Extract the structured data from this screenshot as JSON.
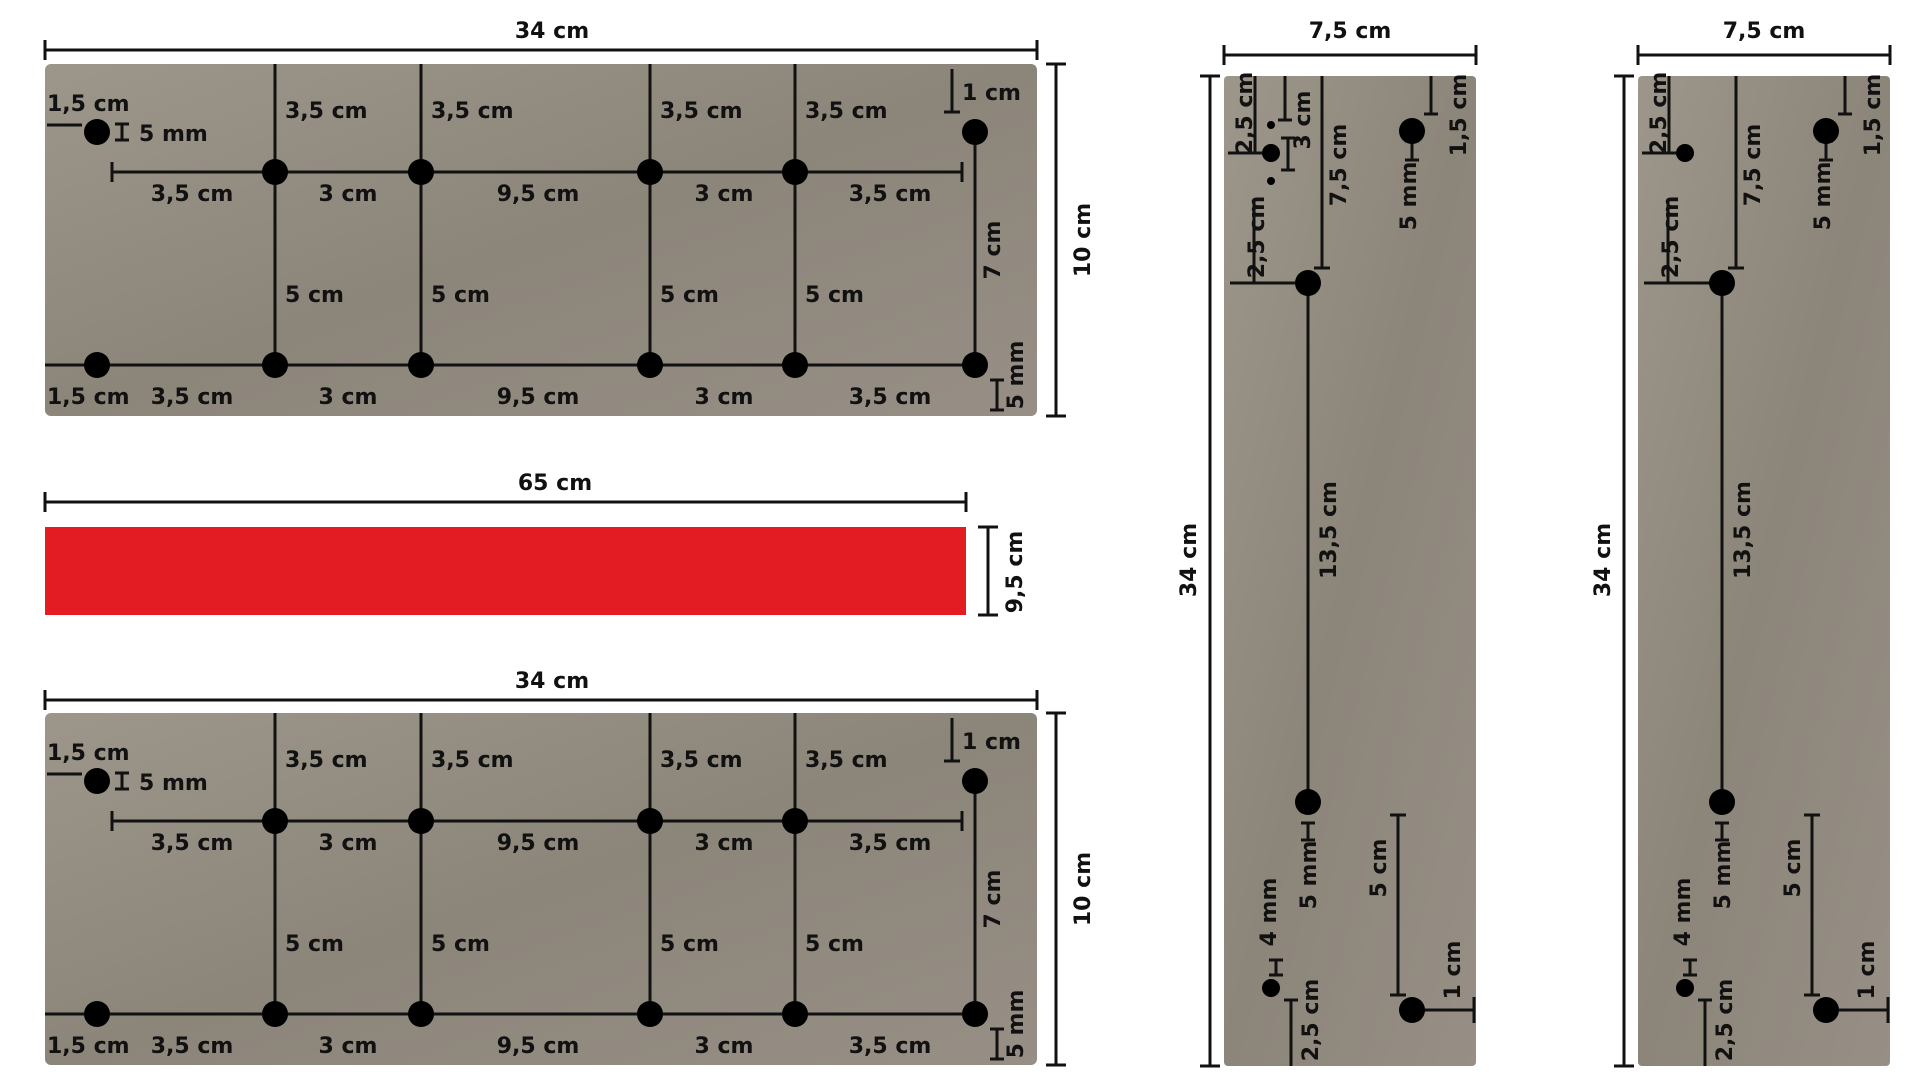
{
  "colors": {
    "board": "#8f877d",
    "board_light": "#a19a90",
    "strip": "#e31b23",
    "ink": "#111111"
  },
  "front_panel": {
    "width": "34 cm",
    "height": "10 cm",
    "hole_margin_x": "1,5 cm",
    "hole_edge_offset": "5 mm",
    "top_offset": "1 cm",
    "bottom_offset": "5 mm",
    "vertical_gap": "7 cm",
    "post_top_drop": "3,5 cm",
    "post_span": "5 cm",
    "segments": [
      "3,5 cm",
      "3 cm",
      "9,5 cm",
      "3 cm",
      "3,5 cm"
    ],
    "bottom_margin": "1,5 cm"
  },
  "strip": {
    "length": "65 cm",
    "height": "9,5 cm"
  },
  "side_panel": {
    "width": "7,5 cm",
    "height": "34 cm",
    "top_right": "1,5 cm",
    "small_top": "2,5 cm",
    "small_gap": "3 cm",
    "drop": "7,5 cm",
    "side_offset": "2,5 cm",
    "offset_5mm": "5 mm",
    "middle": "13,5 cm",
    "hole_4mm": "4 mm",
    "bottom_offset": "2,5 cm",
    "lower_gap": "5 cm",
    "bottom_right": "1 cm"
  }
}
